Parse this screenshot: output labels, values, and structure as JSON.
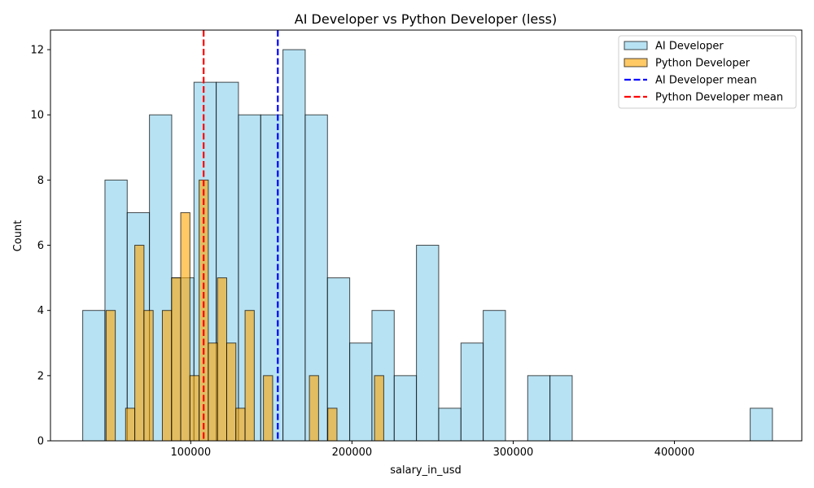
{
  "chart_data": {
    "type": "bar",
    "title": "AI Developer vs Python Developer (less)",
    "xlabel": "salary_in_usd",
    "ylabel": "Count",
    "xlim": [
      13000,
      479000
    ],
    "ylim": [
      0,
      12.6
    ],
    "xticks": [
      100000,
      200000,
      300000,
      400000
    ],
    "xtick_labels": [
      "100000",
      "200000",
      "300000",
      "400000"
    ],
    "yticks": [
      0,
      2,
      4,
      6,
      8,
      10,
      12
    ],
    "ytick_labels": [
      "0",
      "2",
      "4",
      "6",
      "8",
      "10",
      "12"
    ],
    "grid": false,
    "legend_position": "top-right",
    "colors": {
      "ai_fill": "#87CEEB",
      "python_fill": "#FFA500",
      "ai_mean": "#0000ff",
      "python_mean": "#ff0000",
      "edge": "#000000"
    },
    "series": [
      {
        "name": "AI Developer",
        "bins": [
          {
            "x0": 33000,
            "x1": 46800,
            "count": 4
          },
          {
            "x0": 46800,
            "x1": 60600,
            "count": 8
          },
          {
            "x0": 60600,
            "x1": 74400,
            "count": 7
          },
          {
            "x0": 74400,
            "x1": 88200,
            "count": 10
          },
          {
            "x0": 88200,
            "x1": 102000,
            "count": 5
          },
          {
            "x0": 102000,
            "x1": 115800,
            "count": 11
          },
          {
            "x0": 115800,
            "x1": 129600,
            "count": 11
          },
          {
            "x0": 129600,
            "x1": 143400,
            "count": 10
          },
          {
            "x0": 143400,
            "x1": 157200,
            "count": 10
          },
          {
            "x0": 157200,
            "x1": 171000,
            "count": 12
          },
          {
            "x0": 171000,
            "x1": 184800,
            "count": 10
          },
          {
            "x0": 184800,
            "x1": 198600,
            "count": 5
          },
          {
            "x0": 198600,
            "x1": 212400,
            "count": 3
          },
          {
            "x0": 212400,
            "x1": 226200,
            "count": 4
          },
          {
            "x0": 226200,
            "x1": 240000,
            "count": 2
          },
          {
            "x0": 240000,
            "x1": 253800,
            "count": 6
          },
          {
            "x0": 253800,
            "x1": 267600,
            "count": 1
          },
          {
            "x0": 267600,
            "x1": 281400,
            "count": 3
          },
          {
            "x0": 281400,
            "x1": 295200,
            "count": 4
          },
          {
            "x0": 309000,
            "x1": 322800,
            "count": 2
          },
          {
            "x0": 322800,
            "x1": 336600,
            "count": 2
          },
          {
            "x0": 447000,
            "x1": 460800,
            "count": 1
          }
        ]
      },
      {
        "name": "Python Developer",
        "bins": [
          {
            "x0": 47500,
            "x1": 53200,
            "count": 4
          },
          {
            "x0": 59600,
            "x1": 65300,
            "count": 1
          },
          {
            "x0": 65300,
            "x1": 71000,
            "count": 6
          },
          {
            "x0": 71000,
            "x1": 76700,
            "count": 4
          },
          {
            "x0": 82400,
            "x1": 88100,
            "count": 4
          },
          {
            "x0": 88100,
            "x1": 93800,
            "count": 5
          },
          {
            "x0": 93800,
            "x1": 99500,
            "count": 7
          },
          {
            "x0": 99500,
            "x1": 105200,
            "count": 2
          },
          {
            "x0": 105200,
            "x1": 110900,
            "count": 8
          },
          {
            "x0": 110900,
            "x1": 116600,
            "count": 3
          },
          {
            "x0": 116600,
            "x1": 122300,
            "count": 5
          },
          {
            "x0": 122300,
            "x1": 128000,
            "count": 3
          },
          {
            "x0": 128000,
            "x1": 133700,
            "count": 1
          },
          {
            "x0": 133700,
            "x1": 139400,
            "count": 4
          },
          {
            "x0": 145100,
            "x1": 150800,
            "count": 2
          },
          {
            "x0": 173600,
            "x1": 179300,
            "count": 2
          },
          {
            "x0": 185000,
            "x1": 190700,
            "count": 1
          },
          {
            "x0": 214000,
            "x1": 219700,
            "count": 2
          }
        ]
      }
    ],
    "means": [
      {
        "name": "AI Developer mean",
        "value": 154000
      },
      {
        "name": "Python Developer mean",
        "value": 108000
      }
    ]
  }
}
